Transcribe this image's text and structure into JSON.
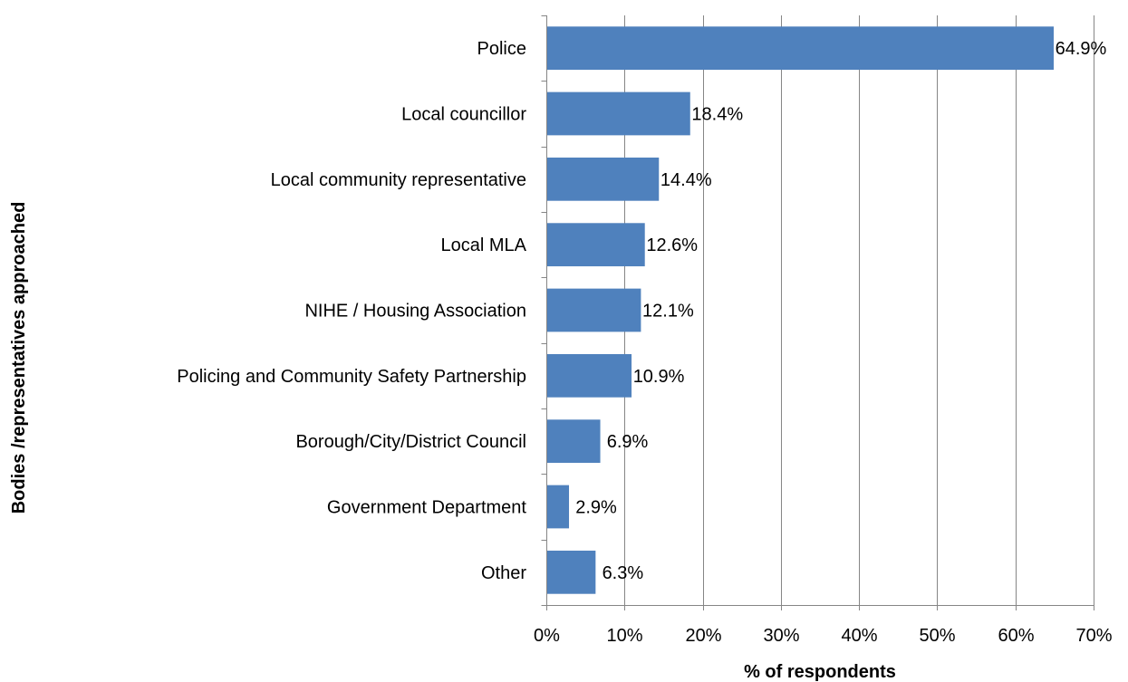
{
  "chart_data": {
    "type": "bar",
    "orientation": "horizontal",
    "categories": [
      "Police",
      "Local councillor",
      "Local community representative",
      "Local MLA",
      "NIHE / Housing Association",
      "Policing and Community Safety Partnership",
      "Borough/City/District Council",
      "Government Department",
      "Other"
    ],
    "values": [
      64.9,
      18.4,
      14.4,
      12.6,
      12.1,
      10.9,
      6.9,
      2.9,
      6.3
    ],
    "data_labels": [
      "64.9%",
      "18.4%",
      "14.4%",
      "12.6%",
      "12.1%",
      "10.9%",
      "6.9%",
      "2.9%",
      "6.3%"
    ],
    "title": "",
    "xlabel": "% of respondents",
    "ylabel": "Bodies /representatives approached",
    "xlim": [
      0,
      70
    ],
    "x_ticks": [
      0,
      10,
      20,
      30,
      40,
      50,
      60,
      70
    ],
    "x_tick_labels": [
      "0%",
      "10%",
      "20%",
      "30%",
      "40%",
      "50%",
      "60%",
      "70%"
    ],
    "grid": "vertical",
    "legend": "none",
    "bar_color": "#4F81BD",
    "grid_color": "#868686",
    "axis_color": "#868686"
  }
}
